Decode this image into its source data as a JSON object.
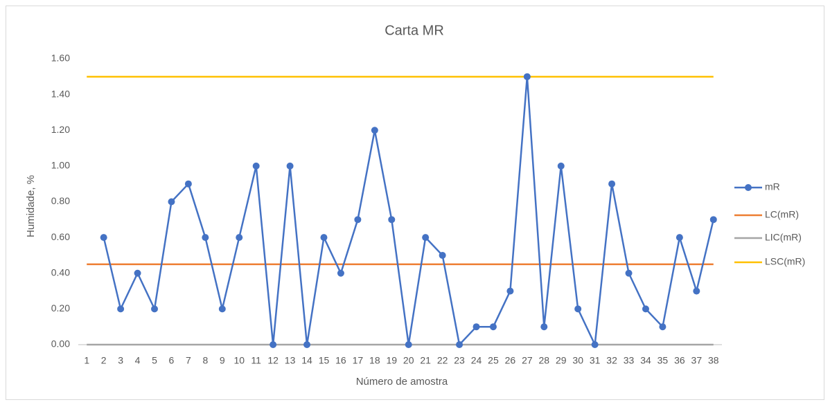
{
  "chart_data": {
    "type": "line",
    "title": "Carta MR",
    "x_label": "Número de amostra",
    "y_label": "Humidade, %",
    "categories": [
      "1",
      "2",
      "3",
      "4",
      "5",
      "6",
      "7",
      "8",
      "9",
      "10",
      "11",
      "12",
      "13",
      "14",
      "15",
      "16",
      "17",
      "18",
      "19",
      "20",
      "21",
      "22",
      "23",
      "24",
      "25",
      "26",
      "27",
      "28",
      "29",
      "30",
      "31",
      "32",
      "33",
      "34",
      "35",
      "36",
      "37",
      "38"
    ],
    "series": [
      {
        "name": "mR",
        "color": "#4472c4",
        "markers": true,
        "values": [
          null,
          0.6,
          0.2,
          0.4,
          0.2,
          0.8,
          0.9,
          0.6,
          0.2,
          0.6,
          1.0,
          0,
          1.0,
          0,
          0.6,
          0.4,
          0.7,
          1.2,
          0.7,
          0,
          0.6,
          0.5,
          0,
          0.1,
          0.1,
          0.3,
          1.5,
          0.1,
          1.0,
          0.2,
          0,
          0.9,
          0.4,
          0.2,
          0.1,
          0.6,
          0.3,
          0.7
        ]
      },
      {
        "name": "LC(mR)",
        "color": "#ed7d31",
        "markers": false,
        "values": [
          0.45,
          0.45,
          0.45,
          0.45,
          0.45,
          0.45,
          0.45,
          0.45,
          0.45,
          0.45,
          0.45,
          0.45,
          0.45,
          0.45,
          0.45,
          0.45,
          0.45,
          0.45,
          0.45,
          0.45,
          0.45,
          0.45,
          0.45,
          0.45,
          0.45,
          0.45,
          0.45,
          0.45,
          0.45,
          0.45,
          0.45,
          0.45,
          0.45,
          0.45,
          0.45,
          0.45,
          0.45,
          0.45
        ]
      },
      {
        "name": "LIC(mR)",
        "color": "#a5a5a5",
        "markers": false,
        "values": [
          0,
          0,
          0,
          0,
          0,
          0,
          0,
          0,
          0,
          0,
          0,
          0,
          0,
          0,
          0,
          0,
          0,
          0,
          0,
          0,
          0,
          0,
          0,
          0,
          0,
          0,
          0,
          0,
          0,
          0,
          0,
          0,
          0,
          0,
          0,
          0,
          0,
          0
        ]
      },
      {
        "name": "LSC(mR)",
        "color": "#ffc000",
        "markers": false,
        "values": [
          1.5,
          1.5,
          1.5,
          1.5,
          1.5,
          1.5,
          1.5,
          1.5,
          1.5,
          1.5,
          1.5,
          1.5,
          1.5,
          1.5,
          1.5,
          1.5,
          1.5,
          1.5,
          1.5,
          1.5,
          1.5,
          1.5,
          1.5,
          1.5,
          1.5,
          1.5,
          1.5,
          1.5,
          1.5,
          1.5,
          1.5,
          1.5,
          1.5,
          1.5,
          1.5,
          1.5,
          1.5,
          1.5
        ]
      }
    ],
    "ylim": [
      0,
      1.6
    ],
    "yticks": [
      {
        "value": 0,
        "label": "0.00"
      },
      {
        "value": 0.2,
        "label": "0.20"
      },
      {
        "value": 0.4,
        "label": "0.40"
      },
      {
        "value": 0.6,
        "label": "0.60"
      },
      {
        "value": 0.8,
        "label": "0.80"
      },
      {
        "value": 1.0,
        "label": "1.00"
      },
      {
        "value": 1.2,
        "label": "1.20"
      },
      {
        "value": 1.4,
        "label": "1.40"
      },
      {
        "value": 1.6,
        "label": "1.60"
      }
    ],
    "grid": false,
    "legend": "right"
  }
}
